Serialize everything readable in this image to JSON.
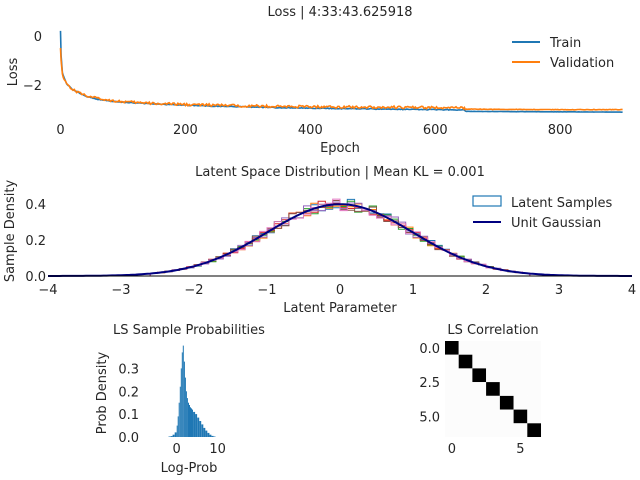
{
  "chart_data": [
    {
      "type": "line",
      "title": "Loss | 4:33:43.625918",
      "xlabel": "Epoch",
      "ylabel": "Loss",
      "xlim": [
        -20,
        915
      ],
      "ylim": [
        -3.3,
        0.4
      ],
      "xticks": [
        0,
        200,
        400,
        600,
        800
      ],
      "yticks": [
        0,
        -2
      ],
      "grid": false,
      "legend": "top-right",
      "series": [
        {
          "name": "Train",
          "color": "#1f77b4",
          "x": [
            0,
            1,
            3,
            6,
            10,
            20,
            40,
            60,
            80,
            100,
            150,
            200,
            250,
            300,
            350,
            400,
            450,
            500,
            550,
            600,
            645,
            650,
            700,
            800,
            900
          ],
          "y": [
            0.2,
            -0.8,
            -1.5,
            -1.7,
            -1.95,
            -2.2,
            -2.45,
            -2.58,
            -2.65,
            -2.7,
            -2.77,
            -2.82,
            -2.86,
            -2.89,
            -2.92,
            -2.94,
            -2.96,
            -2.97,
            -2.99,
            -3.0,
            -3.01,
            -3.07,
            -3.08,
            -3.09,
            -3.1
          ]
        },
        {
          "name": "Validation",
          "color": "#ff7f0e",
          "x": [
            0,
            1,
            3,
            6,
            10,
            20,
            40,
            60,
            80,
            100,
            150,
            200,
            250,
            300,
            350,
            400,
            450,
            500,
            550,
            600,
            645,
            650,
            700,
            800,
            900
          ],
          "y": [
            -0.5,
            -1.0,
            -1.55,
            -1.75,
            -1.95,
            -2.2,
            -2.42,
            -2.55,
            -2.62,
            -2.68,
            -2.75,
            -2.79,
            -2.82,
            -2.85,
            -2.87,
            -2.88,
            -2.89,
            -2.9,
            -2.91,
            -2.92,
            -2.93,
            -2.98,
            -2.99,
            -3.0,
            -3.0
          ]
        }
      ]
    },
    {
      "type": "histogram",
      "title": "Latent Space Distribution | Mean KL = 0.001",
      "xlabel": "Latent Parameter",
      "ylabel": "Sample Density",
      "xlim": [
        -4,
        4
      ],
      "ylim": [
        0,
        0.5
      ],
      "xticks": [
        -4,
        -3,
        -2,
        -1,
        0,
        1,
        2,
        3,
        4
      ],
      "yticks": [
        0.0,
        0.2,
        0.4
      ],
      "legend": "top-right",
      "series": [
        {
          "name": "Latent Samples",
          "color": "#1f77b4"
        },
        {
          "name": "Unit Gaussian",
          "color": "#000080",
          "mean": 0,
          "std": 1
        }
      ],
      "sample_colors": [
        "#1f77b4",
        "#ff7f0e",
        "#2ca02c",
        "#d62728",
        "#9467bd",
        "#8c564b",
        "#e377c2"
      ]
    },
    {
      "type": "histogram",
      "title": "LS Sample Probabilities",
      "xlabel": "Log-Prob",
      "ylabel": "Prob Density",
      "xlim": [
        -7.5,
        14
      ],
      "ylim": [
        0,
        0.42
      ],
      "xticks": [
        0,
        10
      ],
      "yticks": [
        0.0,
        0.1,
        0.2,
        0.3
      ],
      "color": "#1f77b4",
      "bins": {
        "x": [
          -2.0,
          -1.5,
          -1.0,
          -0.5,
          0.0,
          0.25,
          0.5,
          0.75,
          1.0,
          1.25,
          1.5,
          1.75,
          2.0,
          2.25,
          2.5,
          2.75,
          3.0,
          3.25,
          3.5,
          3.75,
          4.0,
          4.5,
          5.0,
          5.5,
          6.0,
          6.5,
          7.0,
          7.5,
          8.0,
          8.5,
          9.0
        ],
        "y": [
          0.002,
          0.004,
          0.01,
          0.02,
          0.05,
          0.09,
          0.15,
          0.22,
          0.3,
          0.37,
          0.4,
          0.33,
          0.26,
          0.2,
          0.17,
          0.15,
          0.14,
          0.13,
          0.125,
          0.12,
          0.11,
          0.1,
          0.085,
          0.07,
          0.055,
          0.04,
          0.028,
          0.018,
          0.01,
          0.005,
          0.002
        ]
      }
    },
    {
      "type": "heatmap",
      "title": "LS Correlation",
      "xticks": [
        0,
        5
      ],
      "yticks": [
        0.0,
        2.5,
        5.0
      ],
      "size": 7,
      "values": [
        [
          1,
          0,
          0,
          0,
          0,
          0,
          0
        ],
        [
          0,
          1,
          0,
          0,
          0,
          0,
          0
        ],
        [
          0,
          0,
          1,
          0,
          0,
          0,
          0
        ],
        [
          0,
          0,
          0,
          1,
          0,
          0,
          0
        ],
        [
          0,
          0,
          0,
          0,
          1,
          0,
          0
        ],
        [
          0,
          0,
          0,
          0,
          0,
          1,
          0
        ],
        [
          0,
          0,
          0,
          0,
          0,
          0,
          1
        ]
      ]
    }
  ]
}
